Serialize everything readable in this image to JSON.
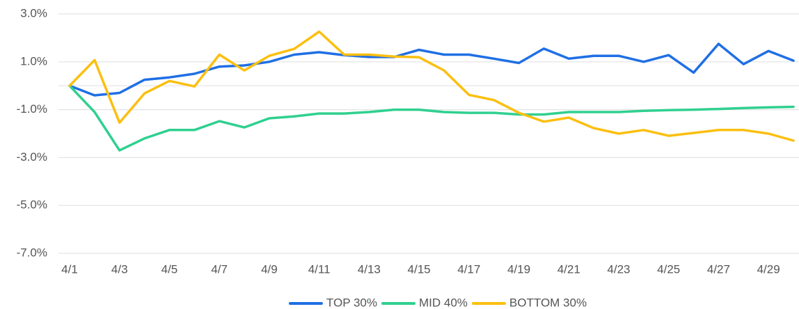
{
  "chart_data": {
    "type": "line",
    "categories": [
      "4/1",
      null,
      "4/3",
      null,
      "4/5",
      null,
      "4/7",
      null,
      "4/9",
      null,
      "4/11",
      null,
      "4/13",
      null,
      "4/15",
      null,
      "4/17",
      null,
      "4/19",
      null,
      "4/21",
      null,
      "4/23",
      null,
      "4/25",
      null,
      "4/27",
      null,
      "4/29",
      null
    ],
    "series": [
      {
        "name": "TOP 30%",
        "color": "#1f6fe5",
        "values": [
          0,
          -0.4,
          -0.3,
          0.25,
          0.35,
          0.5,
          0.8,
          0.85,
          1.0,
          1.3,
          1.4,
          1.28,
          1.2,
          1.2,
          1.5,
          1.3,
          1.3,
          1.13,
          0.95,
          1.55,
          1.13,
          1.25,
          1.25,
          1.0,
          1.28,
          0.55,
          1.75,
          0.9,
          1.45,
          1.05
        ]
      },
      {
        "name": "MID 40%",
        "color": "#2fd08f",
        "values": [
          0,
          -1.1,
          -2.7,
          -2.2,
          -1.85,
          -1.85,
          -1.48,
          -1.74,
          -1.36,
          -1.28,
          -1.16,
          -1.16,
          -1.1,
          -1.0,
          -1.0,
          -1.1,
          -1.13,
          -1.13,
          -1.2,
          -1.2,
          -1.1,
          -1.1,
          -1.1,
          -1.05,
          -1.02,
          -1.0,
          -0.97,
          -0.93,
          -0.9,
          -0.88
        ]
      },
      {
        "name": "BOTTOM 30%",
        "color": "#fbbf10",
        "values": [
          0,
          1.07,
          -1.54,
          -0.32,
          0.2,
          -0.03,
          1.3,
          0.64,
          1.25,
          1.54,
          2.26,
          1.3,
          1.3,
          1.22,
          1.19,
          0.64,
          -0.38,
          -0.6,
          -1.13,
          -1.5,
          -1.33,
          -1.77,
          -2.0,
          -1.85,
          -2.09,
          -1.97,
          -1.85,
          -1.85,
          -2.0,
          -2.29
        ]
      }
    ],
    "ylim": [
      -7,
      3
    ],
    "yticks": [
      {
        "value": 3,
        "label": "3.0%"
      },
      {
        "value": 1,
        "label": "1.0%"
      },
      {
        "value": -1,
        "label": "-1.0%"
      },
      {
        "value": -3,
        "label": "-3.0%"
      },
      {
        "value": -5,
        "label": "-5.0%"
      },
      {
        "value": -7,
        "label": "-7.0%"
      }
    ],
    "grid": true,
    "zero_line": true,
    "legend": "bottom"
  }
}
